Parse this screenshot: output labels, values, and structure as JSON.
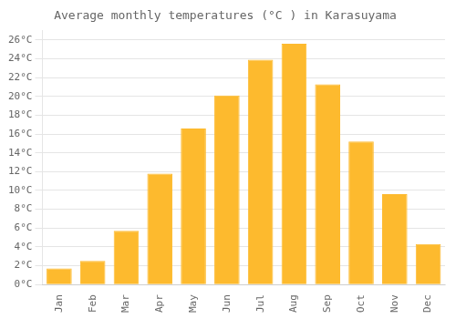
{
  "chart_data": {
    "type": "bar",
    "title": "Average monthly temperatures (°C ) in Karasuyama",
    "categories": [
      "Jan",
      "Feb",
      "Mar",
      "Apr",
      "May",
      "Jun",
      "Jul",
      "Aug",
      "Sep",
      "Oct",
      "Nov",
      "Dec"
    ],
    "values": [
      1.7,
      2.5,
      5.7,
      11.8,
      16.6,
      20.1,
      23.9,
      25.6,
      21.3,
      15.2,
      9.6,
      4.3
    ],
    "color": "#FDBA2E",
    "ylim": [
      0,
      27
    ],
    "yticks": [
      {
        "value": 0,
        "label": "0°C"
      },
      {
        "value": 2,
        "label": "2°C"
      },
      {
        "value": 4,
        "label": "4°C"
      },
      {
        "value": 6,
        "label": "6°C"
      },
      {
        "value": 8,
        "label": "8°C"
      },
      {
        "value": 10,
        "label": "10°C"
      },
      {
        "value": 12,
        "label": "12°C"
      },
      {
        "value": 14,
        "label": "14°C"
      },
      {
        "value": 16,
        "label": "16°C"
      },
      {
        "value": 18,
        "label": "18°C"
      },
      {
        "value": 20,
        "label": "20°C"
      },
      {
        "value": 22,
        "label": "22°C"
      },
      {
        "value": 24,
        "label": "24°C"
      },
      {
        "value": 26,
        "label": "26°C"
      }
    ],
    "grid": true
  }
}
